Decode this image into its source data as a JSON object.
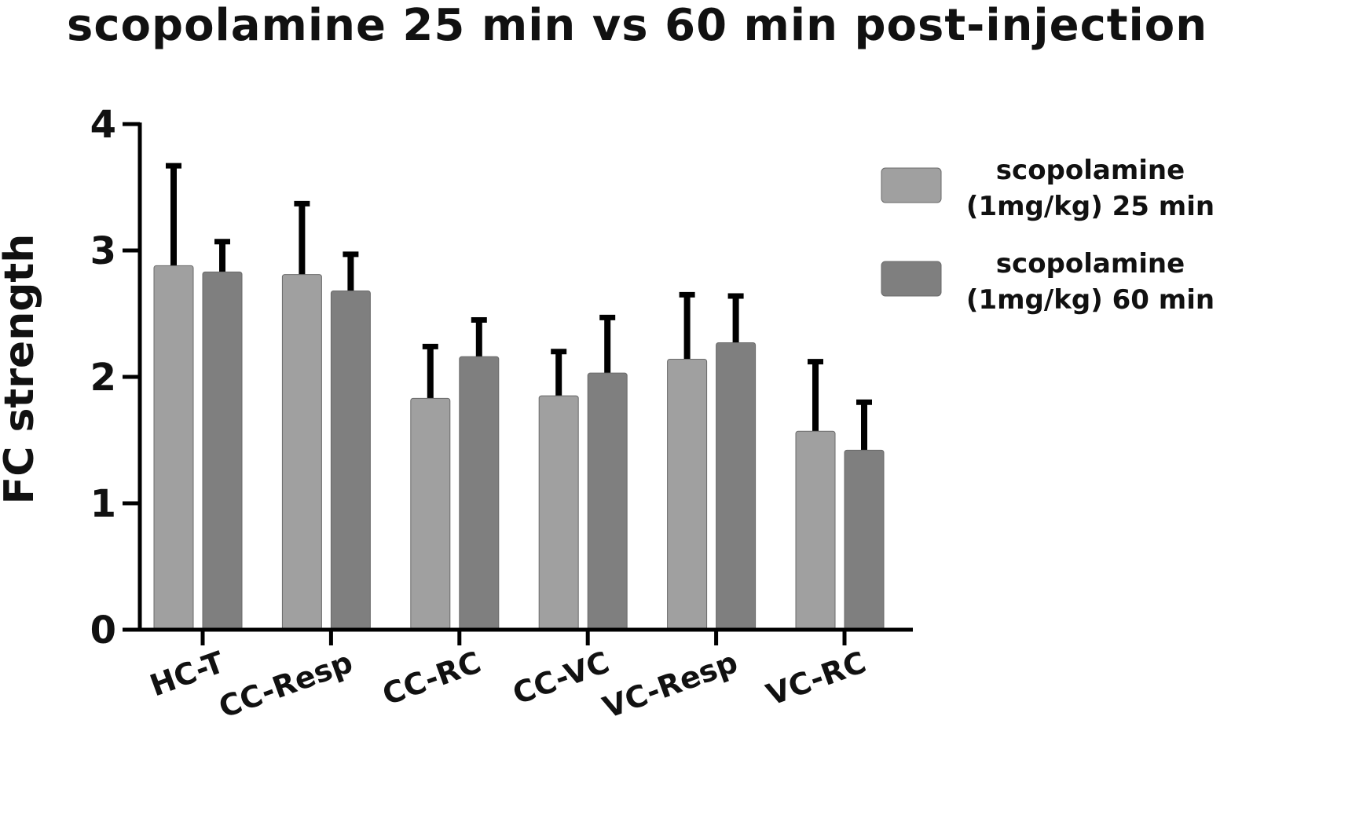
{
  "chart_data": {
    "type": "bar",
    "title": "scopolamine 25 min vs 60 min post-injection",
    "xlabel": "",
    "ylabel": "FC strength",
    "ylim": [
      0,
      4
    ],
    "yticks": [
      "0",
      "1",
      "2",
      "3",
      "4"
    ],
    "categories": [
      "HC-T",
      "CC-Resp",
      "CC-RC",
      "CC-VC",
      "VC-Resp",
      "VC-RC"
    ],
    "series": [
      {
        "name_lines": [
          "scopolamine",
          "(1mg/kg) 25 min"
        ],
        "color": "#a0a0a0",
        "values": [
          2.88,
          2.81,
          1.83,
          1.85,
          2.14,
          1.57
        ],
        "error": [
          0.79,
          0.56,
          0.41,
          0.35,
          0.51,
          0.55
        ]
      },
      {
        "name_lines": [
          "scopolamine",
          "(1mg/kg) 60 min"
        ],
        "color": "#7f7f7f",
        "values": [
          2.83,
          2.68,
          2.16,
          2.03,
          2.27,
          1.42
        ],
        "error": [
          0.24,
          0.29,
          0.29,
          0.44,
          0.37,
          0.38
        ]
      }
    ],
    "legend_position": "right",
    "grid": false
  }
}
